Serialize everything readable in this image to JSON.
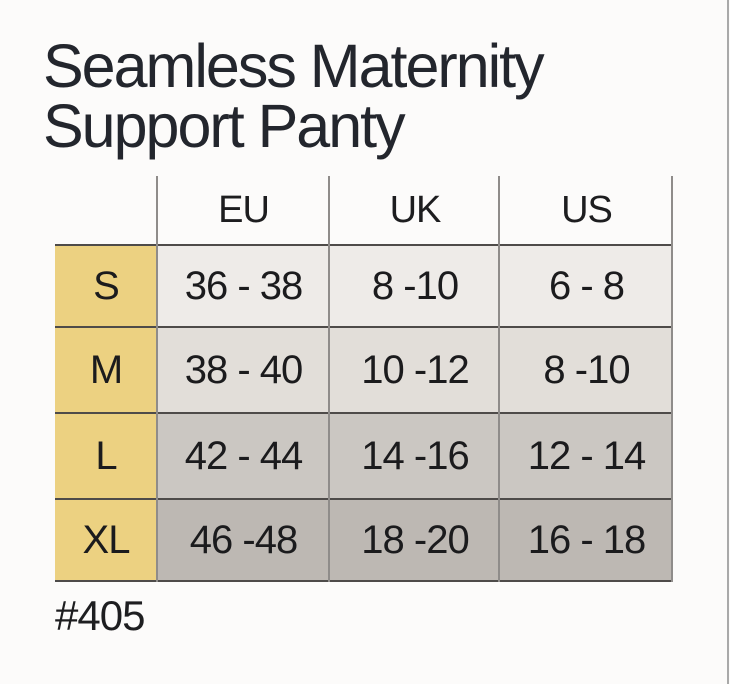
{
  "title": {
    "line1": "Seamless Maternity",
    "line2": "Support Panty"
  },
  "product_code": "#405",
  "chart_data": {
    "type": "table",
    "title": "Seamless Maternity Support Panty",
    "columns": [
      "EU",
      "UK",
      "US"
    ],
    "row_labels": [
      "S",
      "M",
      "L",
      "XL"
    ],
    "rows": [
      [
        "36 - 38",
        "8 -10",
        "6 - 8"
      ],
      [
        "38 - 40",
        "10 -12",
        "8 -10"
      ],
      [
        "42 - 44",
        "14 -16",
        "12 - 14"
      ],
      [
        "46 -48",
        "18 -20",
        "16 - 18"
      ]
    ]
  },
  "colors": {
    "size_column_yellow": "#ecd181",
    "row_s_bg": "#eeebe8",
    "row_m_bg": "#e2ded9",
    "row_l_bg": "#cbc7c2",
    "row_xl_bg": "#bdb8b3",
    "grid_vertical": "#8f8c8a",
    "grid_horizontal": "#4e4b49",
    "title_text": "#23262d",
    "table_text": "#1b1b1d"
  }
}
